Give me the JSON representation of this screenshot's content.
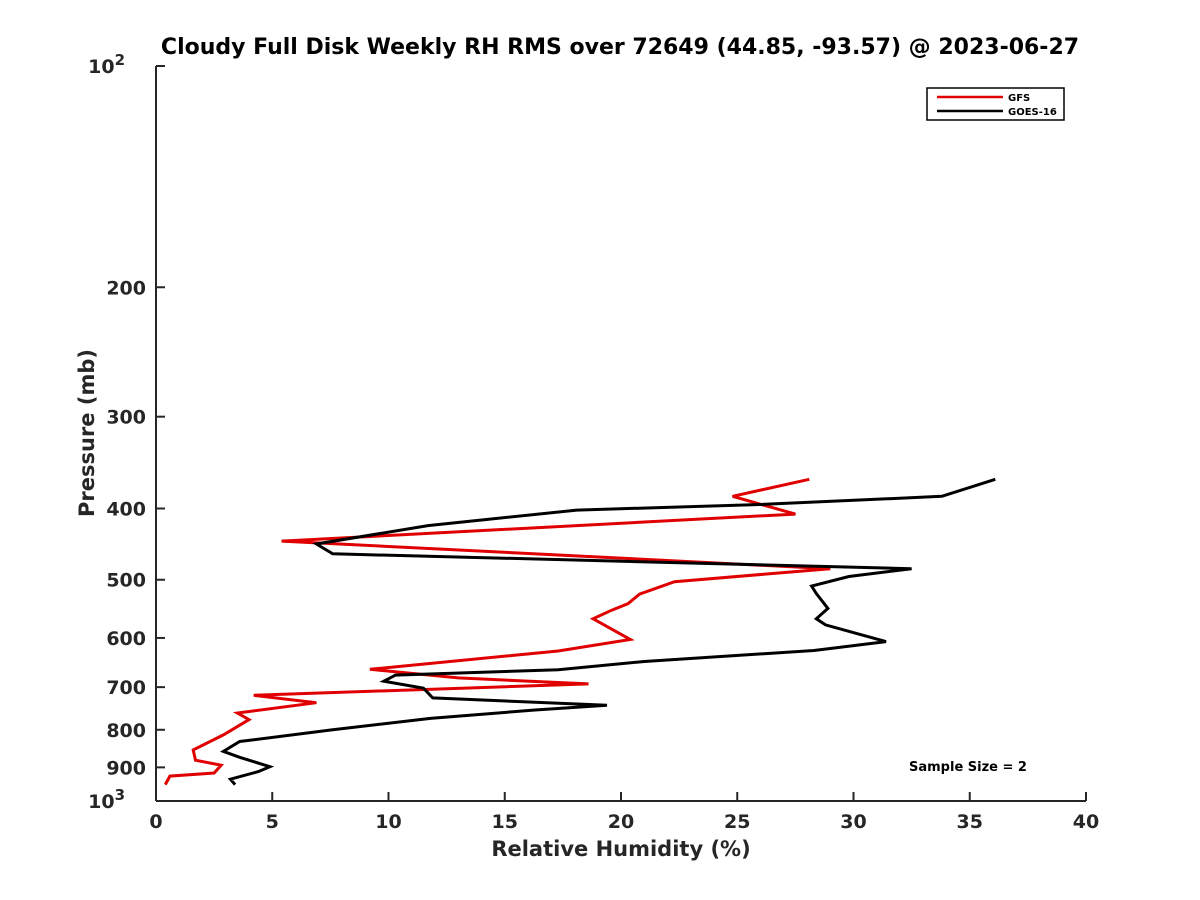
{
  "chart_data": {
    "type": "line",
    "title": "Cloudy Full Disk Weekly RH RMS over 72649 (44.85, -93.57) @ 2023-06-27",
    "xlabel": "Relative Humidity (%)",
    "ylabel": "Pressure (mb)",
    "xlim": [
      0,
      40
    ],
    "ylim": [
      100,
      1000
    ],
    "y_scale": "log",
    "y_reversed": true,
    "grid": false,
    "legend_position": "top-right",
    "x_ticks": [
      "0",
      "5",
      "10",
      "15",
      "20",
      "25",
      "30",
      "35",
      "40"
    ],
    "y_ticks": [
      {
        "value": 100,
        "label": "10",
        "exp": "2"
      },
      {
        "value": 200,
        "label": "200"
      },
      {
        "value": 300,
        "label": "300"
      },
      {
        "value": 400,
        "label": "400"
      },
      {
        "value": 500,
        "label": "500"
      },
      {
        "value": 600,
        "label": "600"
      },
      {
        "value": 700,
        "label": "700"
      },
      {
        "value": 800,
        "label": "800"
      },
      {
        "value": 900,
        "label": "900"
      },
      {
        "value": 1000,
        "label": "10",
        "exp": "3"
      }
    ],
    "series": [
      {
        "name": "GFS",
        "color": "#e00000",
        "x": [
          28.1,
          24.8,
          27.5,
          5.4,
          29.0,
          22.3,
          20.8,
          20.3,
          19.6,
          18.8,
          20.4,
          17.3,
          9.2,
          13.0,
          18.6,
          4.2,
          6.9,
          3.5,
          4.0,
          2.9,
          1.6,
          1.7,
          2.8,
          2.5,
          0.6,
          0.4
        ],
        "y": [
          365,
          385,
          407,
          443,
          483,
          503,
          523,
          539,
          550,
          565,
          603,
          625,
          662,
          680,
          693,
          718,
          735,
          759,
          775,
          813,
          852,
          880,
          894,
          916,
          925,
          950
        ]
      },
      {
        "name": "GOES-16",
        "color": "#000000",
        "x": [
          36.1,
          33.8,
          26.0,
          18.1,
          11.7,
          6.9,
          7.6,
          32.5,
          29.8,
          28.2,
          28.4,
          28.9,
          28.4,
          28.8,
          31.4,
          28.3,
          21.0,
          17.3,
          10.3,
          9.8,
          11.5,
          11.9,
          19.4,
          16.3,
          11.8,
          7.6,
          3.6,
          2.9,
          3.6,
          4.9,
          4.4,
          3.2,
          3.4
        ],
        "y": [
          365,
          385,
          395,
          402,
          422,
          447,
          461,
          483,
          495,
          510,
          522,
          547,
          565,
          576,
          607,
          624,
          646,
          663,
          674,
          687,
          702,
          724,
          741,
          752,
          772,
          800,
          830,
          856,
          872,
          898,
          912,
          934,
          950
        ]
      }
    ],
    "annotation": "Sample Size = 2"
  }
}
